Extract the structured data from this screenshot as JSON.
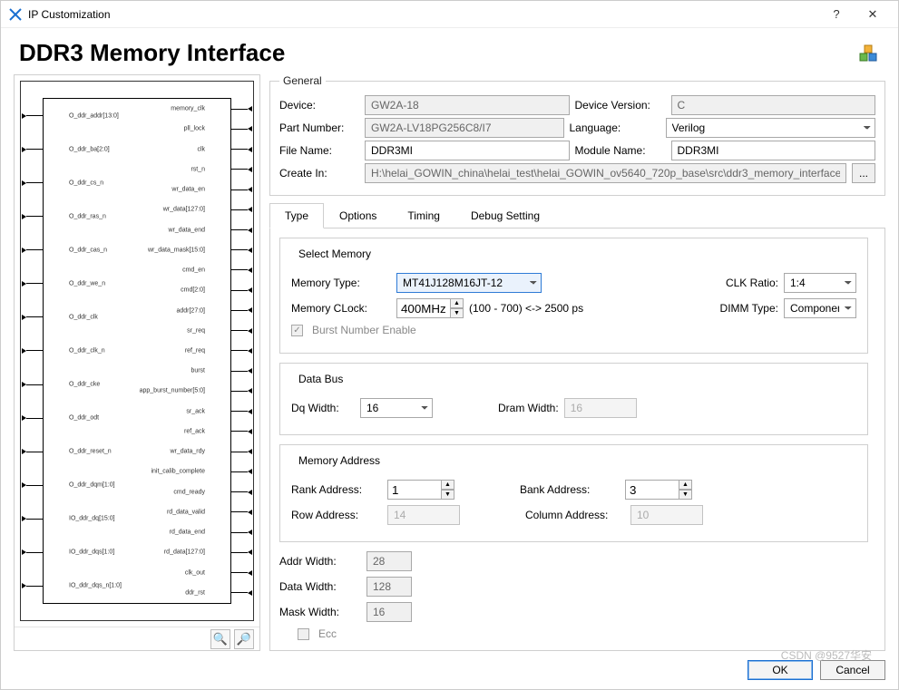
{
  "window": {
    "title": "IP Customization"
  },
  "header": {
    "title": "DDR3 Memory Interface"
  },
  "diagram": {
    "left_ports": [
      "O_ddr_addr[13:0]",
      "O_ddr_ba[2:0]",
      "O_ddr_cs_n",
      "O_ddr_ras_n",
      "O_ddr_cas_n",
      "O_ddr_we_n",
      "O_ddr_clk",
      "O_ddr_clk_n",
      "O_ddr_cke",
      "O_ddr_odt",
      "O_ddr_reset_n",
      "O_ddr_dqm[1:0]",
      "IO_ddr_dq[15:0]",
      "IO_ddr_dqs[1:0]",
      "IO_ddr_dqs_n[1:0]"
    ],
    "right_ports": [
      "memory_clk",
      "pll_lock",
      "clk",
      "rst_n",
      "wr_data_en",
      "wr_data[127:0]",
      "wr_data_end",
      "wr_data_mask[15:0]",
      "cmd_en",
      "cmd[2:0]",
      "addr[27:0]",
      "sr_req",
      "ref_req",
      "burst",
      "app_burst_number[5:0]",
      "sr_ack",
      "ref_ack",
      "wr_data_rdy",
      "init_calib_complete",
      "cmd_ready",
      "rd_data_valid",
      "rd_data_end",
      "rd_data[127:0]",
      "clk_out",
      "ddr_rst"
    ]
  },
  "general": {
    "legend": "General",
    "device_label": "Device:",
    "device": "GW2A-18",
    "version_label": "Device Version:",
    "version": "C",
    "part_label": "Part Number:",
    "part": "GW2A-LV18PG256C8/I7",
    "lang_label": "Language:",
    "lang": "Verilog",
    "file_label": "File Name:",
    "file": "DDR3MI",
    "module_label": "Module Name:",
    "module": "DDR3MI",
    "create_label": "Create In:",
    "create": "H:\\helai_GOWIN_china\\helai_test\\helai_GOWIN_ov5640_720p_base\\src\\ddr3_memory_interface"
  },
  "tabs": {
    "items": [
      "Type",
      "Options",
      "Timing",
      "Debug Setting"
    ],
    "active": 0
  },
  "type_tab": {
    "select_memory": {
      "legend": "Select Memory",
      "memtype_label": "Memory Type:",
      "memtype": "MT41J128M16JT-12",
      "clkratio_label": "CLK Ratio:",
      "clkratio": "1:4",
      "memclock_label": "Memory CLock:",
      "memclock": "400MHz",
      "memclock_hint": "(100 - 700)  <-> 2500 ps",
      "dimm_label": "DIMM Type:",
      "dimm": "Component",
      "burst_label": "Burst Number Enable"
    },
    "data_bus": {
      "legend": "Data Bus",
      "dq_label": "Dq Width:",
      "dq": "16",
      "dram_label": "Dram Width:",
      "dram": "16"
    },
    "mem_addr": {
      "legend": "Memory Address",
      "rank_label": "Rank Address:",
      "rank": "1",
      "bank_label": "Bank Address:",
      "bank": "3",
      "row_label": "Row Address:",
      "row": "14",
      "col_label": "Column Address:",
      "col": "10"
    },
    "widths": {
      "addr_label": "Addr Width:",
      "addr": "28",
      "data_label": "Data Width:",
      "data": "128",
      "mask_label": "Mask Width:",
      "mask": "16",
      "ecc_label": "Ecc"
    }
  },
  "footer": {
    "ok": "OK",
    "cancel": "Cancel"
  },
  "watermark": "CSDN @9527华安",
  "colors": {
    "accent": "#2e7bd6",
    "border": "#cfcfcf"
  }
}
